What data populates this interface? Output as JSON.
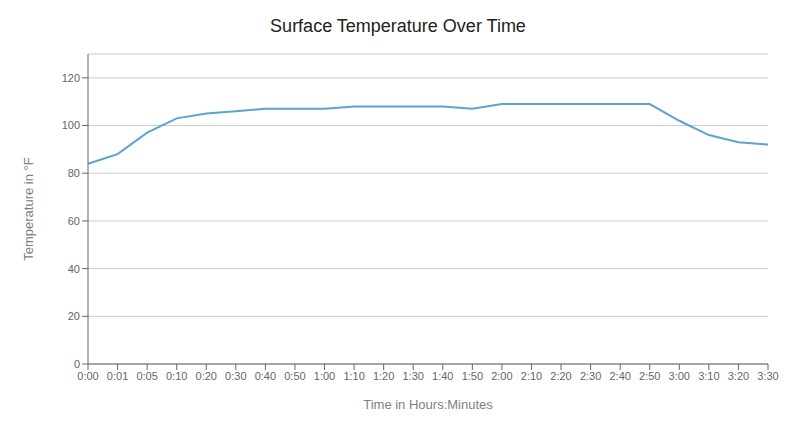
{
  "chart_data": {
    "type": "line",
    "title": "Surface Temperature Over Time",
    "xlabel": "Time in Hours:Minutes",
    "ylabel": "Temperature in °F",
    "categories": [
      "0:00",
      "0:01",
      "0:05",
      "0:10",
      "0:20",
      "0:30",
      "0:40",
      "0:50",
      "1:00",
      "1:10",
      "1:20",
      "1:30",
      "1:40",
      "1:50",
      "2:00",
      "2:10",
      "2:20",
      "2:30",
      "2:40",
      "2:50",
      "3:00",
      "3:10",
      "3:20",
      "3:30"
    ],
    "values": [
      84,
      88,
      97,
      103,
      105,
      106,
      107,
      107,
      107,
      108,
      108,
      108,
      108,
      107,
      109,
      109,
      109,
      109,
      109,
      109,
      102,
      96,
      93,
      92
    ],
    "color": "#5BA3D0",
    "ylim": [
      0,
      130
    ],
    "yticks": [
      0,
      20,
      40,
      60,
      80,
      100,
      120
    ],
    "grid": true
  }
}
